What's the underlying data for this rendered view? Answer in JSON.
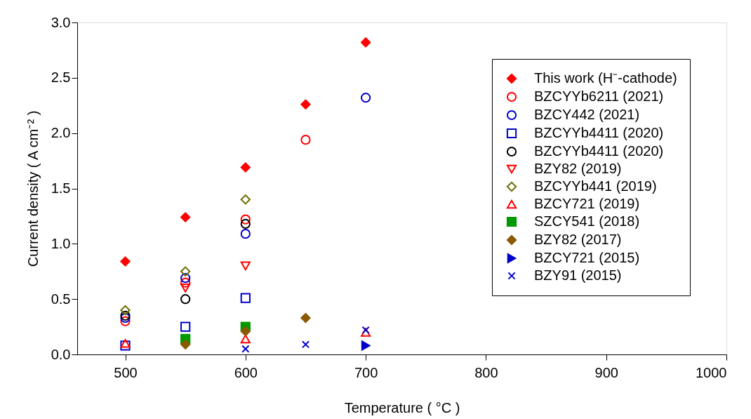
{
  "chart_data": {
    "type": "scatter",
    "xlabel": "Temperature ( °C )",
    "ylabel": "Current density ( A cm⁻² )",
    "xlim": [
      460,
      1000
    ],
    "xticks": [
      500,
      600,
      700,
      800,
      900,
      1000
    ],
    "ylim": [
      0,
      3.0
    ],
    "yticks": [
      {
        "value": 0,
        "label": "0.0"
      },
      {
        "value": 0.5,
        "label": "0.5"
      },
      {
        "value": 1,
        "label": "1.0"
      },
      {
        "value": 1.5,
        "label": "1.5"
      },
      {
        "value": 2,
        "label": "2.0"
      },
      {
        "value": 2.5,
        "label": "2.5"
      },
      {
        "value": 3,
        "label": "3.0"
      }
    ],
    "grid": false,
    "legend": "top right",
    "series": [
      {
        "name": "This work (H⁻-cathode)",
        "color": "#ff0000",
        "marker": "diamond-filled",
        "x": [
          500,
          550,
          600,
          650,
          700
        ],
        "values": [
          0.84,
          1.24,
          1.69,
          2.26,
          2.82
        ]
      },
      {
        "name": "BZCYYb6211 (2021)",
        "color": "#ff0000",
        "marker": "circle",
        "x": [
          500,
          550,
          600,
          650
        ],
        "values": [
          0.3,
          0.65,
          1.22,
          1.94
        ]
      },
      {
        "name": "BZCY442 (2021)",
        "color": "#0000cc",
        "marker": "circle",
        "x": [
          500,
          550,
          600,
          700
        ],
        "values": [
          0.33,
          0.69,
          1.09,
          2.32
        ]
      },
      {
        "name": "BZCYYb4411 (2020)",
        "color": "#0000cc",
        "marker": "square",
        "x": [
          500,
          550,
          600
        ],
        "values": [
          0.08,
          0.25,
          0.51
        ]
      },
      {
        "name": "BZCYYb4411 (2020)",
        "color": "#000000",
        "marker": "circle",
        "x": [
          500,
          550,
          600
        ],
        "values": [
          0.35,
          0.5,
          1.18
        ]
      },
      {
        "name": "BZY82 (2019)",
        "color": "#ff0000",
        "marker": "triangle-down",
        "x": [
          550,
          600
        ],
        "values": [
          0.6,
          0.8
        ]
      },
      {
        "name": "BZCYYb441 (2019)",
        "color": "#6b6b00",
        "marker": "diamond",
        "x": [
          500,
          550,
          600
        ],
        "values": [
          0.4,
          0.75,
          1.4
        ]
      },
      {
        "name": "BZCY721 (2019)",
        "color": "#ff0000",
        "marker": "triangle-up",
        "x": [
          500,
          600,
          700
        ],
        "values": [
          0.1,
          0.14,
          0.2
        ]
      },
      {
        "name": "SZCY541 (2018)",
        "color": "#009900",
        "marker": "square-filled",
        "x": [
          550,
          600
        ],
        "values": [
          0.14,
          0.25
        ]
      },
      {
        "name": "BZY82 (2017)",
        "color": "#8b5a00",
        "marker": "diamond-filled",
        "x": [
          550,
          600,
          650
        ],
        "values": [
          0.09,
          0.21,
          0.33
        ]
      },
      {
        "name": "BZCY721 (2015)",
        "color": "#0000cc",
        "marker": "triangle-right-filled",
        "x": [
          700
        ],
        "values": [
          0.08
        ]
      },
      {
        "name": "BZY91 (2015)",
        "color": "#0000cc",
        "marker": "cross",
        "x": [
          600,
          650,
          700
        ],
        "values": [
          0.05,
          0.09,
          0.22
        ]
      }
    ]
  }
}
